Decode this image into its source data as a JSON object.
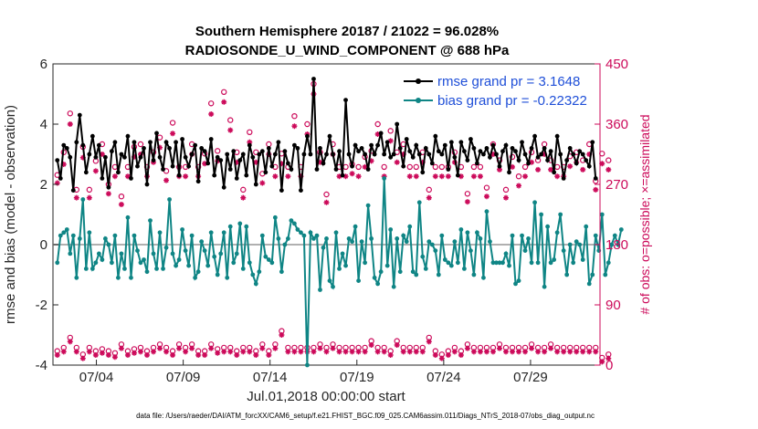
{
  "chart_data": {
    "type": "line",
    "title_line1": "Southern Hemisphere 20187 / 21022 = 96.028%",
    "title_line2": "RADIOSONDE_U_WIND_COMPONENT @ 688 hPa",
    "xlabel": "Jul.01,2018 00:00:00 start",
    "ylabel": "rmse and bias (model - observation)",
    "ylabel_right": "# of obs: o=possible; ×=assimilated",
    "xlim": [
      0,
      31.5
    ],
    "ylim": [
      -4,
      6
    ],
    "ylim_right": [
      0,
      450
    ],
    "x_ticks": [
      2.5,
      7.5,
      12.5,
      17.5,
      22.5,
      27.5
    ],
    "x_tick_labels": [
      "07/04",
      "07/09",
      "07/14",
      "07/19",
      "07/24",
      "07/29"
    ],
    "y_ticks": [
      -4,
      -2,
      0,
      2,
      4,
      6
    ],
    "y_tick_labels": [
      "-4",
      "-2",
      "0",
      "2",
      "4",
      "6"
    ],
    "y_ticks_right": [
      0,
      90,
      180,
      270,
      360,
      450
    ],
    "y_tick_labels_right": [
      "0",
      "90",
      "180",
      "270",
      "360",
      "450"
    ],
    "series": [
      {
        "name": "rmse grand pr = 3.1648",
        "color": "#000000",
        "values": [
          2.8,
          2.2,
          3.3,
          3.2,
          2.9,
          1.8,
          3.4,
          4.3,
          3.3,
          2.4,
          3.0,
          3.6,
          2.9,
          3.3,
          2.2,
          2.9,
          1.9,
          3.1,
          3.4,
          2.4,
          3.0,
          2.9,
          3.6,
          2.2,
          3.4,
          2.6,
          2.9,
          3.2,
          2.0,
          3.4,
          2.8,
          3.7,
          2.9,
          2.5,
          3.4,
          3.2,
          2.6,
          3.4,
          2.3,
          3.5,
          2.9,
          2.6,
          3.0,
          3.3,
          2.1,
          3.2,
          3.1,
          2.7,
          3.5,
          2.3,
          2.9,
          2.8,
          1.9,
          3.0,
          2.5,
          3.1,
          2.2,
          2.8,
          3.0,
          2.3,
          3.3,
          2.9,
          2.0,
          3.0,
          3.1,
          2.4,
          3.2,
          2.6,
          3.0,
          3.4,
          1.8,
          3.1,
          2.7,
          2.5,
          3.3,
          3.2,
          1.8,
          3.0,
          3.6,
          3.0,
          5.5,
          2.5,
          3.2,
          2.7,
          3.0,
          3.6,
          3.0,
          2.5,
          3.1,
          2.3,
          4.8,
          3.0,
          2.6,
          3.3,
          3.1,
          3.2,
          3.0,
          2.5,
          3.3,
          3.0,
          3.3,
          3.7,
          3.0,
          3.4,
          2.9,
          3.0,
          4.0,
          3.2,
          2.6,
          3.5,
          3.1,
          2.9,
          3.3,
          3.0,
          2.4,
          3.2,
          3.0,
          2.7,
          3.6,
          3.1,
          3.0,
          3.3,
          2.5,
          3.4,
          2.9,
          2.3,
          3.4,
          3.1,
          2.8,
          3.5,
          3.2,
          2.7,
          3.1,
          3.0,
          3.2,
          2.9,
          3.3,
          3.0,
          2.6,
          3.1,
          3.3,
          2.4,
          3.2,
          3.1,
          2.8,
          3.4,
          3.0,
          2.7,
          3.2,
          3.6,
          2.9,
          3.0,
          3.2,
          2.8,
          3.1,
          2.4,
          3.6,
          3.0,
          2.2,
          2.8,
          3.2,
          3.0,
          2.7,
          3.1,
          3.0,
          2.8,
          2.6,
          3.4,
          2.2
        ],
        "values_note": "estimated from gridlines; one point per 6 hours starting 07/01 06Z"
      },
      {
        "name": "bias grand pr = -0.22322",
        "color": "#0f8585",
        "values": [
          -0.6,
          0.3,
          0.4,
          0.5,
          -0.3,
          0.3,
          -1.1,
          0.2,
          1.5,
          -0.8,
          0.4,
          -0.8,
          -0.6,
          -0.3,
          -0.5,
          0.2,
          0.0,
          -0.6,
          0.3,
          -1.1,
          -0.3,
          -0.8,
          0.9,
          -1.1,
          0.3,
          -0.2,
          -0.6,
          -0.5,
          -0.9,
          0.8,
          -0.3,
          -0.8,
          0.4,
          -0.8,
          -0.1,
          1.5,
          -0.3,
          -0.7,
          -0.5,
          0.5,
          -0.2,
          -0.7,
          0.3,
          -1.1,
          -0.9,
          0.1,
          -0.2,
          -0.7,
          0.4,
          -0.4,
          -1.0,
          -0.3,
          0.4,
          -1.1,
          0.6,
          -0.6,
          -0.3,
          0.7,
          -0.8,
          0.6,
          -0.6,
          -1.0,
          -1.3,
          -0.9,
          0.3,
          -0.4,
          -0.5,
          -0.6,
          0.9,
          0.2,
          -0.9,
          0.0,
          0.2,
          0.8,
          0.7,
          0.5,
          0.4,
          0.3,
          -4.0,
          0.4,
          0.2,
          0.3,
          -1.5,
          -0.1,
          0.2,
          -1.2,
          -1.4,
          0.4,
          -0.8,
          -0.3,
          -0.7,
          0.2,
          0.1,
          0.6,
          -1.2,
          0.1,
          -0.6,
          1.3,
          0.2,
          -1.1,
          -1.3,
          -0.9,
          2.2,
          -0.7,
          0.5,
          -1.4,
          0.2,
          -0.9,
          0.3,
          0.1,
          0.6,
          -0.9,
          -1.0,
          1.4,
          -0.4,
          -0.8,
          0.1,
          0.0,
          -0.2,
          -1.0,
          0.3,
          -0.5,
          -0.6,
          -0.7,
          0.1,
          -0.6,
          0.5,
          -0.8,
          0.4,
          -0.2,
          -1.0,
          0.4,
          0.2,
          -1.1,
          1.1,
          0.1,
          -0.6,
          -0.6,
          -0.6,
          -0.6,
          -0.3,
          -0.7,
          0.3,
          -1.3,
          -1.2,
          0.3,
          -0.2,
          0.2,
          -0.6,
          1.4,
          -0.6,
          1.0,
          -1.4,
          0.6,
          -0.6,
          -0.5,
          0.4,
          1.0,
          -0.2,
          -1.0,
          0.0,
          -0.6,
          0.1,
          0.0,
          -0.5,
          0.6,
          -1.3,
          -1.0,
          0.3,
          -0.2,
          1.0,
          -1.0,
          -0.6,
          0.0,
          0.3,
          0.0,
          0.5
        ]
      }
    ],
    "counts_possible_note": "magenta circles: number of obs possible (right axis)",
    "counts_possible": [
      284,
      262,
      318,
      370,
      376,
      357,
      262,
      296,
      326,
      296,
      262,
      296,
      305,
      340,
      330,
      296,
      270,
      318,
      296,
      326,
      252,
      350,
      296,
      311,
      326,
      352,
      330,
      360,
      296,
      246,
      318,
      296,
      340,
      330,
      290,
      262,
      362,
      326,
      296,
      360,
      296,
      306,
      330,
      262,
      296,
      345,
      316,
      296,
      391,
      350,
      320,
      440,
      408,
      296,
      366,
      336,
      318,
      296,
      262,
      306,
      348,
      330,
      318,
      296,
      286,
      240,
      330,
      312,
      296,
      296,
      316,
      330,
      296,
      318,
      372,
      306,
      296,
      330,
      360,
      345,
      420,
      296,
      318,
      296,
      255,
      305,
      330,
      375,
      296,
      356,
      296,
      330,
      300,
      306,
      296,
      330,
      311,
      375,
      320,
      330,
      360,
      296,
      296,
      306,
      350,
      296,
      318,
      296,
      330,
      262,
      296,
      306,
      296,
      340,
      318,
      296,
      262,
      330,
      296,
      306,
      296,
      330,
      296,
      318,
      318,
      306,
      296,
      296,
      256,
      306,
      296,
      318,
      296,
      306,
      265,
      318,
      330,
      296,
      306,
      296,
      262,
      318,
      311,
      296,
      282,
      330,
      296,
      262,
      318,
      296,
      306,
      296,
      330,
      296,
      306,
      318,
      296,
      330,
      296,
      306,
      312,
      296,
      318,
      296,
      306,
      296,
      330,
      296,
      275,
      296,
      316,
      296,
      306
    ],
    "counts_assimilated_note": "magenta asterisks: number of obs assimilated (right axis)",
    "counts_assimilated": [
      272,
      250,
      300,
      355,
      360,
      340,
      250,
      280,
      310,
      280,
      250,
      282,
      290,
      325,
      315,
      282,
      256,
      303,
      282,
      311,
      240,
      335,
      282,
      296,
      311,
      337,
      315,
      345,
      282,
      233,
      303,
      282,
      325,
      315,
      276,
      250,
      346,
      311,
      282,
      345,
      282,
      292,
      315,
      250,
      282,
      330,
      301,
      282,
      375,
      335,
      305,
      425,
      393,
      282,
      351,
      321,
      303,
      282,
      250,
      292,
      333,
      315,
      303,
      282,
      272,
      228,
      315,
      297,
      282,
      282,
      301,
      315,
      282,
      303,
      357,
      292,
      282,
      315,
      345,
      330,
      405,
      282,
      303,
      282,
      243,
      291,
      315,
      360,
      282,
      341,
      282,
      315,
      286,
      292,
      282,
      315,
      296,
      360,
      305,
      315,
      345,
      282,
      282,
      292,
      335,
      282,
      303,
      282,
      315,
      250,
      282,
      292,
      282,
      325,
      303,
      282,
      250,
      315,
      282,
      292,
      282,
      315,
      282,
      303,
      303,
      292,
      282,
      282,
      244,
      292,
      282,
      303,
      282,
      292,
      252,
      303,
      315,
      282,
      292,
      282,
      250,
      303,
      296,
      282,
      268,
      315,
      282,
      250,
      303,
      282,
      292,
      282,
      315,
      282,
      292,
      303,
      282,
      315,
      282,
      292,
      297,
      282,
      303,
      282,
      292,
      282,
      315,
      282,
      262,
      282,
      301,
      282,
      292
    ],
    "low_counts_possible": [
      15,
      10,
      20,
      12,
      35,
      15,
      20,
      18,
      10,
      30,
      20,
      12,
      15,
      25,
      18,
      10,
      15,
      20,
      12,
      20,
      25,
      20,
      15,
      25,
      18,
      10,
      20,
      15,
      15,
      20,
      20,
      20,
      25,
      15,
      20,
      18,
      15,
      30,
      25,
      20,
      20,
      22,
      25,
      20,
      15,
      20,
      15,
      20,
      25,
      20,
      18,
      15,
      20,
      25,
      20,
      20,
      15,
      25,
      20,
      30,
      20,
      20,
      15,
      20,
      25,
      20,
      15,
      20,
      25,
      20,
      45,
      20,
      20,
      25,
      20,
      20,
      20,
      20,
      20,
      20,
      20,
      20,
      25,
      20,
      20,
      20,
      25,
      20,
      20,
      20,
      20,
      20,
      20,
      20,
      20,
      25,
      20,
      20,
      30,
      15,
      20,
      20,
      20,
      20,
      15,
      20,
      30,
      20,
      20,
      25,
      20,
      15,
      20,
      15,
      20,
      25,
      35,
      20,
      15,
      20,
      10,
      20,
      15,
      25,
      20,
      20,
      15,
      20,
      25,
      20,
      20,
      15,
      20,
      20,
      20,
      40,
      20,
      15,
      25,
      20,
      20,
      20,
      20,
      15,
      20,
      10,
      20,
      20,
      25,
      20,
      20,
      15,
      20,
      20,
      25,
      20,
      20,
      20,
      20,
      20,
      20,
      20,
      20,
      15,
      20,
      20,
      20,
      20,
      20,
      20,
      5,
      20,
      10
    ],
    "legend_location": "top-right",
    "grid": false,
    "zero_line": true
  },
  "footer": "data file: /Users/raeder/DAI/ATM_forcXX/CAM6_setup/f.e21.FHIST_BGC.f09_025.CAM6assim.011/Diags_NTrS_2018-07/obs_diag_output.nc",
  "colors": {
    "rmse": "#000000",
    "bias": "#0f8585",
    "obs": "#cc0a5a",
    "zero_line": "#b0b0b0",
    "legend_text": "#1f4fd8"
  }
}
